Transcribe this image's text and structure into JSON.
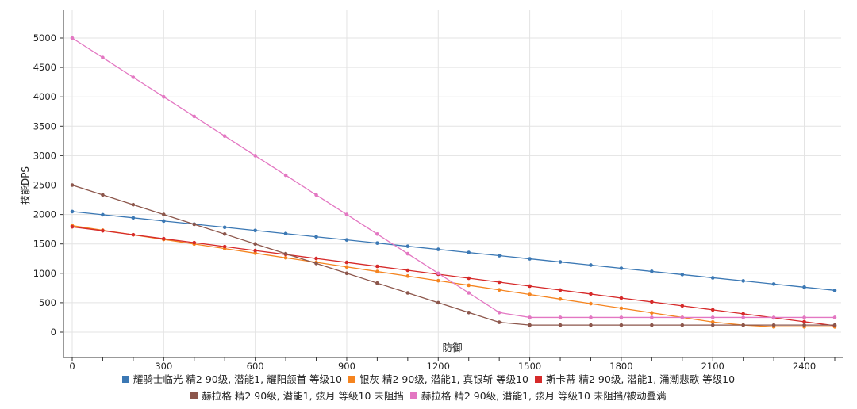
{
  "chart_data": {
    "type": "line",
    "title": "",
    "xlabel": "防御",
    "ylabel": "技能DPS",
    "xlim": [
      0,
      2500
    ],
    "ylim": [
      0,
      5000
    ],
    "x_ticks": [
      0,
      300,
      600,
      900,
      1200,
      1500,
      1800,
      2100,
      2400
    ],
    "y_ticks": [
      0,
      500,
      1000,
      1500,
      2000,
      2500,
      3000,
      3500,
      4000,
      4500,
      5000
    ],
    "grid": true,
    "legend_position": "bottom",
    "x": [
      0,
      100,
      200,
      300,
      400,
      500,
      600,
      700,
      800,
      900,
      1000,
      1100,
      1200,
      1300,
      1400,
      1500,
      1600,
      1700,
      1800,
      1900,
      2000,
      2100,
      2200,
      2300,
      2400,
      2500
    ],
    "series": [
      {
        "name": "耀骑士临光 精2 90级, 潜能1, 耀阳颔首 等级10",
        "color": "#3b78b4",
        "values": [
          2050,
          1996,
          1943,
          1889,
          1836,
          1782,
          1728,
          1675,
          1621,
          1568,
          1514,
          1460,
          1407,
          1353,
          1300,
          1246,
          1192,
          1139,
          1085,
          1032,
          978,
          924,
          871,
          817,
          764,
          710
        ]
      },
      {
        "name": "银灰 精2 90级, 潜能1, 真银斩 等级10",
        "color": "#f5841f",
        "values": [
          1810,
          1732,
          1654,
          1576,
          1498,
          1420,
          1342,
          1264,
          1186,
          1108,
          1030,
          952,
          874,
          796,
          718,
          640,
          562,
          484,
          406,
          328,
          250,
          172,
          120,
          90,
          90,
          90
        ]
      },
      {
        "name": "斯卡蒂 精2 90级, 潜能1, 涌潮悲歌 等级10",
        "color": "#d62a2a",
        "values": [
          1790,
          1723,
          1656,
          1588,
          1521,
          1454,
          1387,
          1320,
          1252,
          1185,
          1118,
          1051,
          984,
          916,
          849,
          782,
          715,
          648,
          580,
          513,
          446,
          379,
          312,
          244,
          177,
          110
        ]
      },
      {
        "name": "赫拉格 精2 90级, 潜能1, 弦月 等级10 未阻挡",
        "color": "#8c564b",
        "values": [
          2500,
          2333,
          2167,
          2000,
          1833,
          1667,
          1500,
          1333,
          1167,
          1000,
          833,
          667,
          500,
          333,
          167,
          120,
          120,
          120,
          120,
          120,
          120,
          120,
          120,
          120,
          120,
          120
        ]
      },
      {
        "name": "赫拉格 精2 90级, 潜能1, 弦月 等级10 未阻挡/被动叠满",
        "color": "#e377c2",
        "values": [
          5000,
          4667,
          4333,
          4000,
          3667,
          3333,
          3000,
          2667,
          2333,
          2000,
          1667,
          1333,
          1000,
          667,
          333,
          250,
          250,
          250,
          250,
          250,
          250,
          250,
          250,
          250,
          250,
          250
        ]
      }
    ]
  }
}
